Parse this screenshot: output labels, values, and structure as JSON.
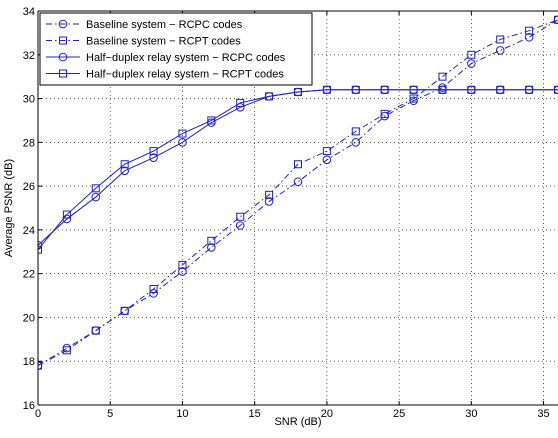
{
  "chart_data": {
    "type": "line",
    "title": "",
    "xlabel": "SNR (dB)",
    "ylabel": "Average PSNR (dB)",
    "xlim": [
      0,
      36
    ],
    "ylim": [
      16,
      34
    ],
    "xticks": [
      0,
      5,
      10,
      15,
      20,
      25,
      30,
      35
    ],
    "yticks": [
      16,
      18,
      20,
      22,
      24,
      26,
      28,
      30,
      32,
      34
    ],
    "grid": true,
    "legend_position": "top-left",
    "series_color": "#1f1fcf",
    "series": [
      {
        "name": "Baseline system − RCPC codes",
        "marker": "circle",
        "line_style": "dashdot",
        "x": [
          0,
          2,
          4,
          6,
          8,
          10,
          12,
          14,
          16,
          18,
          20,
          22,
          24,
          26,
          28,
          30,
          32,
          34,
          36
        ],
        "y": [
          17.8,
          18.6,
          19.4,
          20.3,
          21.1,
          22.1,
          23.2,
          24.2,
          25.3,
          26.2,
          27.2,
          28.0,
          29.2,
          29.9,
          30.5,
          31.6,
          32.2,
          32.8,
          33.6
        ]
      },
      {
        "name": "Baseline system − RCPT codes",
        "marker": "square",
        "line_style": "dashdot",
        "x": [
          0,
          2,
          4,
          6,
          8,
          10,
          12,
          14,
          16,
          18,
          20,
          22,
          24,
          26,
          28,
          30,
          32,
          34,
          36
        ],
        "y": [
          17.8,
          18.5,
          19.4,
          20.3,
          21.3,
          22.4,
          23.5,
          24.6,
          25.6,
          27.0,
          27.6,
          28.5,
          29.3,
          30.0,
          31.0,
          32.0,
          32.7,
          33.1,
          33.6
        ]
      },
      {
        "name": "Half−duplex relay system − RCPC codes",
        "marker": "circle",
        "line_style": "solid",
        "x": [
          0,
          2,
          4,
          6,
          8,
          10,
          12,
          14,
          16,
          18,
          20,
          22,
          24,
          26,
          28,
          30,
          32,
          34,
          36
        ],
        "y": [
          23.3,
          24.5,
          25.5,
          26.7,
          27.3,
          28.0,
          28.9,
          29.6,
          30.1,
          30.3,
          30.4,
          30.4,
          30.4,
          30.4,
          30.4,
          30.4,
          30.4,
          30.4,
          30.4
        ]
      },
      {
        "name": "Half−duplex relay system − RCPT codes",
        "marker": "square",
        "line_style": "solid",
        "x": [
          0,
          2,
          4,
          6,
          8,
          10,
          12,
          14,
          16,
          18,
          20,
          22,
          24,
          26,
          28,
          30,
          32,
          34,
          36
        ],
        "y": [
          23.1,
          24.7,
          25.9,
          27.0,
          27.6,
          28.4,
          29.0,
          29.8,
          30.1,
          30.3,
          30.4,
          30.4,
          30.4,
          30.4,
          30.4,
          30.4,
          30.4,
          30.4,
          30.4
        ]
      }
    ]
  }
}
